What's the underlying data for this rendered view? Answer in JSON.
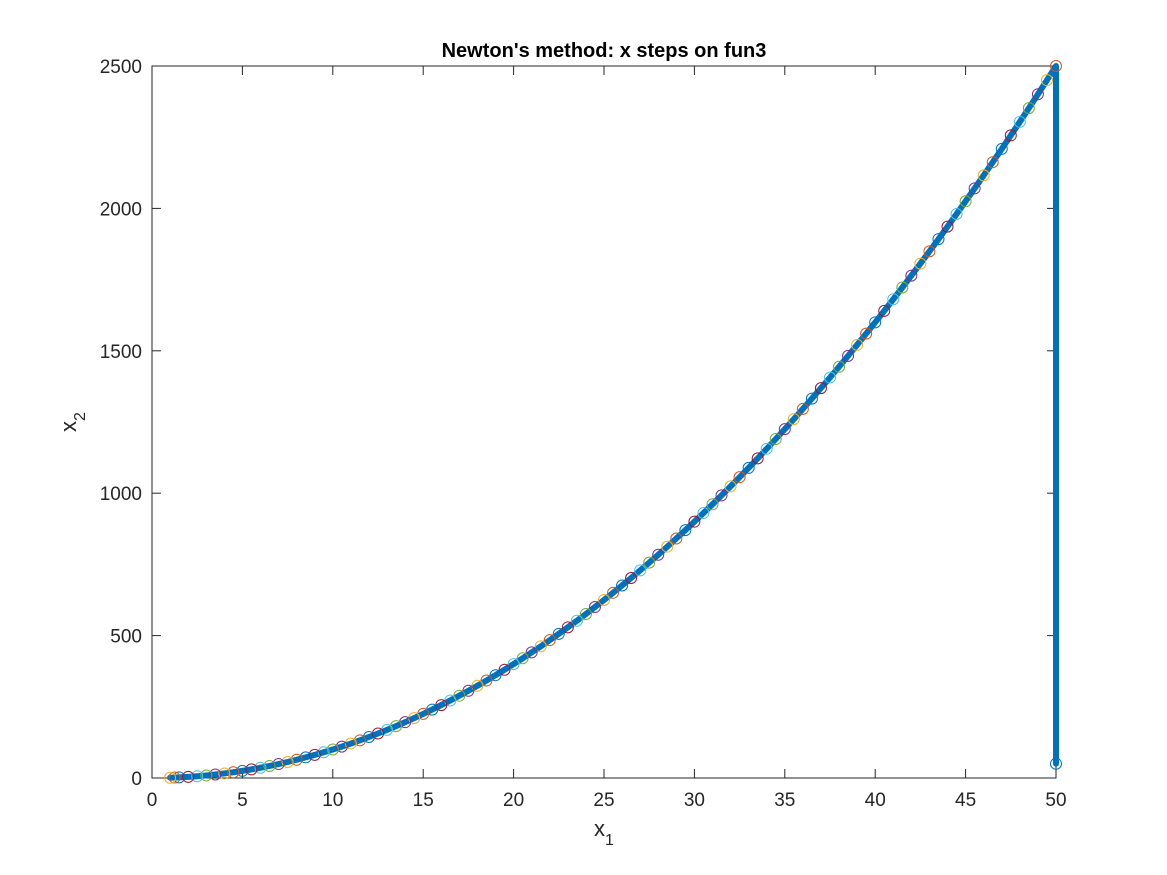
{
  "chart_data": {
    "type": "line",
    "title": "Newton's method: x steps on fun3",
    "xlabel": "x",
    "xlabel_sub": "1",
    "ylabel": "x",
    "ylabel_sub": "2",
    "xlim": [
      0,
      50
    ],
    "ylim": [
      0,
      2500
    ],
    "xticks": [
      "0",
      "5",
      "10",
      "15",
      "20",
      "25",
      "30",
      "35",
      "40",
      "45",
      "50"
    ],
    "yticks": [
      "0",
      "500",
      "1000",
      "1500",
      "2000",
      "2500"
    ],
    "grid": false,
    "box": true,
    "line_color": "#0072BD",
    "marker_colors": [
      "#0072BD",
      "#D95319",
      "#EDB120",
      "#7E2F8E",
      "#77AC30",
      "#4DBEEE",
      "#A2142F"
    ],
    "series": [
      {
        "x": [
          50,
          50,
          49.5,
          49.0,
          48.5,
          48.0,
          47.5,
          47.0,
          46.5,
          46.0,
          45.5,
          45.0,
          44.5,
          44.0,
          43.5,
          43.0,
          42.5,
          42.0,
          41.5,
          41.0,
          40.5,
          40.0,
          39.5,
          39.0,
          38.5,
          38.0,
          37.5,
          37.0,
          36.5,
          36.0,
          35.5,
          35.0,
          34.5,
          34.0,
          33.5,
          33.0,
          32.5,
          32.0,
          31.5,
          31.0,
          30.5,
          30.0,
          29.5,
          29.0,
          28.5,
          28.0,
          27.5,
          27.0,
          26.5,
          26.0,
          25.5,
          25.0,
          24.5,
          24.0,
          23.5,
          23.0,
          22.5,
          22.0,
          21.5,
          21.0,
          20.5,
          20.0,
          19.5,
          19.0,
          18.5,
          18.0,
          17.5,
          17.0,
          16.5,
          16.0,
          15.5,
          15.0,
          14.5,
          14.0,
          13.5,
          13.0,
          12.5,
          12.0,
          11.5,
          11.0,
          10.5,
          10.0,
          9.5,
          9.0,
          8.5,
          8.0,
          7.5,
          7.0,
          6.5,
          6.0,
          5.5,
          5.0,
          4.5,
          4.0,
          3.5,
          3.0,
          2.5,
          2.0,
          1.5,
          1.25,
          1.0
        ],
        "y": [
          50,
          2500,
          2450.25,
          2401.0,
          2352.25,
          2304.0,
          2256.25,
          2209.0,
          2162.25,
          2116.0,
          2070.25,
          2025.0,
          1980.25,
          1936.0,
          1892.25,
          1849.0,
          1806.25,
          1764.0,
          1722.25,
          1681.0,
          1640.25,
          1600.0,
          1560.25,
          1521.0,
          1482.25,
          1444.0,
          1406.25,
          1369.0,
          1332.25,
          1296.0,
          1260.25,
          1225.0,
          1190.25,
          1156.0,
          1122.25,
          1089.0,
          1056.25,
          1024.0,
          992.25,
          961.0,
          930.25,
          900.0,
          870.25,
          841.0,
          812.25,
          784.0,
          756.25,
          729.0,
          702.25,
          676.0,
          650.25,
          625.0,
          600.25,
          576.0,
          552.25,
          529.0,
          506.25,
          484.0,
          462.25,
          441.0,
          420.25,
          400.0,
          380.25,
          361.0,
          342.25,
          324.0,
          306.25,
          289.0,
          272.25,
          256.0,
          240.25,
          225.0,
          210.25,
          196.0,
          182.25,
          169.0,
          156.25,
          144.0,
          132.25,
          121.0,
          110.25,
          100.0,
          90.25,
          81.0,
          72.25,
          64.0,
          56.25,
          49.0,
          42.25,
          36.0,
          30.25,
          25.0,
          20.25,
          16.0,
          12.25,
          9.0,
          6.25,
          4.0,
          2.25,
          1.5625,
          1.0
        ]
      }
    ]
  }
}
